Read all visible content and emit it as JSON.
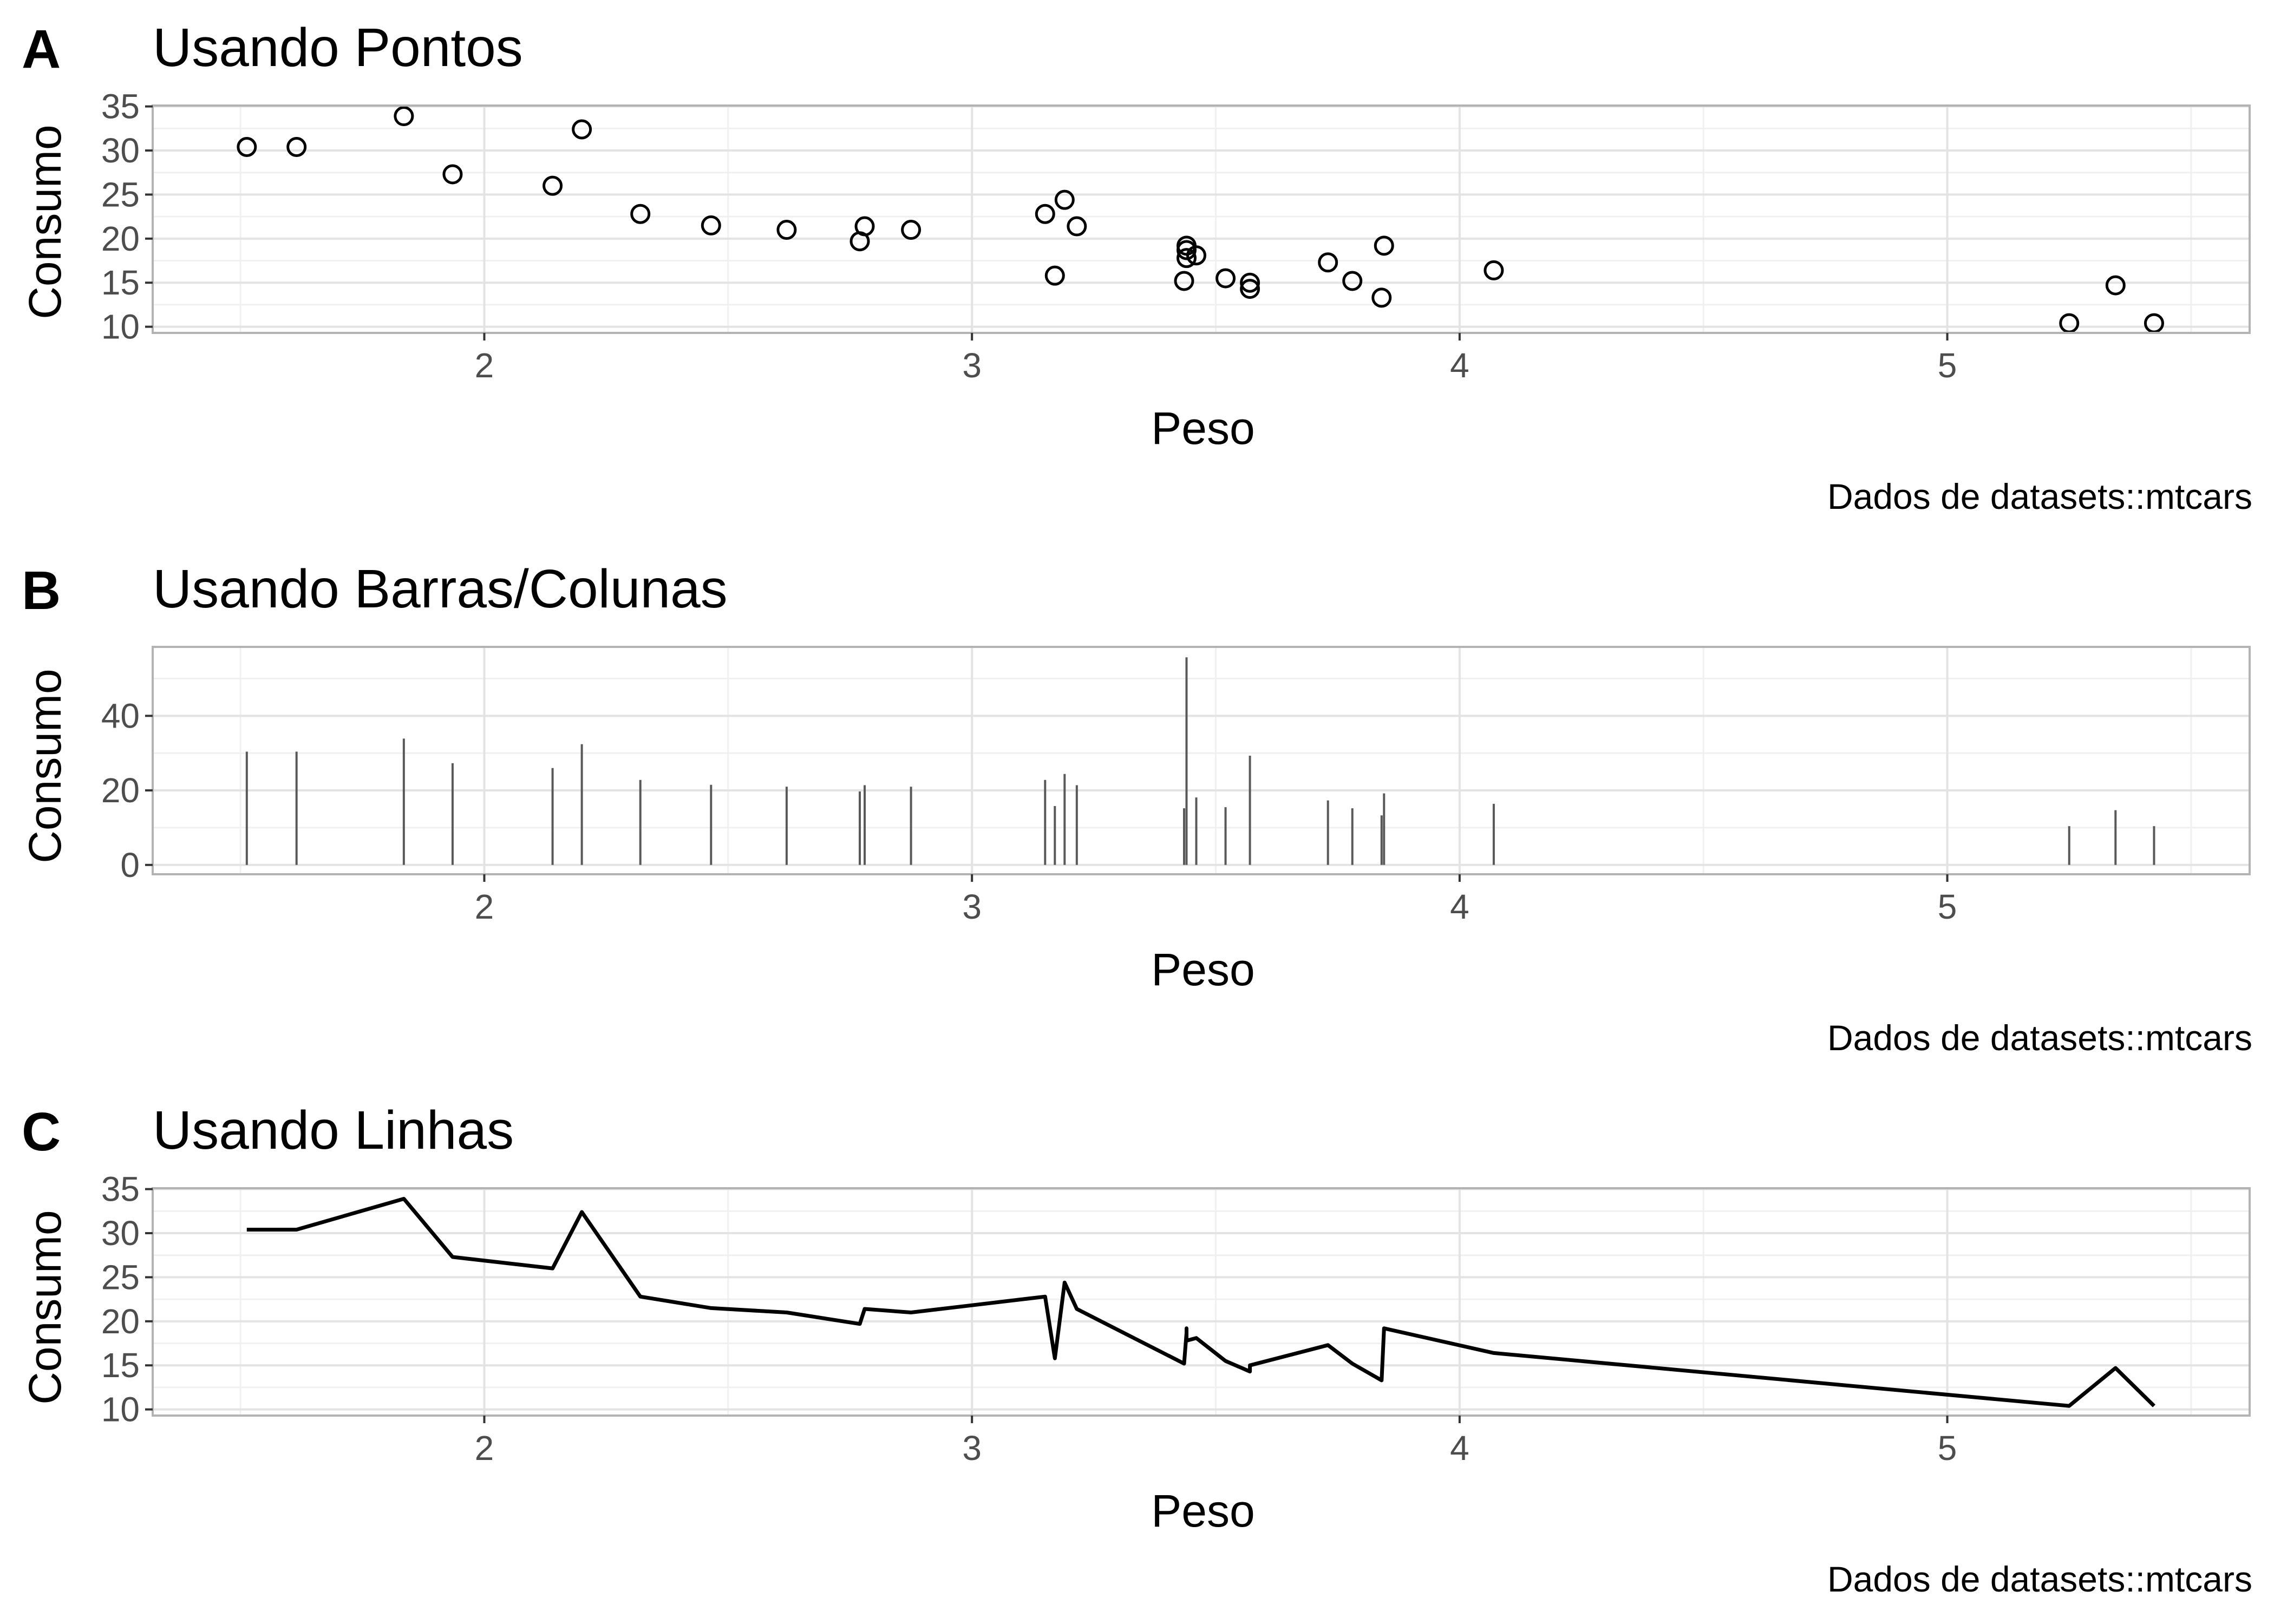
{
  "caption": "Dados de datasets::mtcars",
  "chart_data": [
    {
      "tag": "A",
      "type": "scatter",
      "title": "Usando Pontos",
      "xlabel": "Peso",
      "ylabel": "Consumo",
      "xlim": [
        1.32,
        5.62
      ],
      "ylim": [
        9.3,
        35.1
      ],
      "xticks": [
        2,
        3,
        4,
        5
      ],
      "yticks": [
        10,
        15,
        20,
        25,
        30,
        35
      ],
      "grid": true,
      "x": [
        1.513,
        1.615,
        1.835,
        1.935,
        2.14,
        2.2,
        2.32,
        2.465,
        2.62,
        2.77,
        2.78,
        2.875,
        3.15,
        3.17,
        3.19,
        3.215,
        3.435,
        3.44,
        3.44,
        3.44,
        3.46,
        3.52,
        3.57,
        3.57,
        3.73,
        3.78,
        3.84,
        3.845,
        4.07,
        5.25,
        5.345,
        5.424
      ],
      "y": [
        30.4,
        30.4,
        33.9,
        27.3,
        26.0,
        32.4,
        22.8,
        21.5,
        21.0,
        19.7,
        21.4,
        21.0,
        22.8,
        15.8,
        24.4,
        21.4,
        15.2,
        18.7,
        19.2,
        17.8,
        18.1,
        15.5,
        14.3,
        15.0,
        17.3,
        15.2,
        13.3,
        19.2,
        16.4,
        10.4,
        14.7,
        10.4
      ]
    },
    {
      "tag": "B",
      "type": "bar",
      "title": "Usando Barras/Colunas",
      "xlabel": "Peso",
      "ylabel": "Consumo",
      "xlim": [
        1.32,
        5.62
      ],
      "ylim": [
        -2.5,
        58.5
      ],
      "xticks": [
        2,
        3,
        4,
        5
      ],
      "yticks": [
        0,
        20,
        40
      ],
      "grid": true,
      "x": [
        1.513,
        1.615,
        1.835,
        1.935,
        2.14,
        2.2,
        2.32,
        2.465,
        2.62,
        2.77,
        2.78,
        2.875,
        3.15,
        3.17,
        3.19,
        3.215,
        3.435,
        3.44,
        3.46,
        3.52,
        3.57,
        3.73,
        3.78,
        3.84,
        3.845,
        4.07,
        5.25,
        5.345,
        5.424
      ],
      "values": [
        30.4,
        30.4,
        33.9,
        27.3,
        26.0,
        32.4,
        22.8,
        21.5,
        21.0,
        19.7,
        21.4,
        21.0,
        22.8,
        15.8,
        24.4,
        21.4,
        15.2,
        55.7,
        18.1,
        15.5,
        29.3,
        17.3,
        15.2,
        13.3,
        19.2,
        16.4,
        10.4,
        14.7,
        10.4
      ]
    },
    {
      "tag": "C",
      "type": "line",
      "title": "Usando Linhas",
      "xlabel": "Peso",
      "ylabel": "Consumo",
      "xlim": [
        1.32,
        5.62
      ],
      "ylim": [
        9.3,
        35.1
      ],
      "xticks": [
        2,
        3,
        4,
        5
      ],
      "yticks": [
        10,
        15,
        20,
        25,
        30,
        35
      ],
      "grid": true,
      "x": [
        1.513,
        1.615,
        1.835,
        1.935,
        2.14,
        2.2,
        2.32,
        2.465,
        2.62,
        2.77,
        2.78,
        2.875,
        3.15,
        3.17,
        3.19,
        3.215,
        3.435,
        3.44,
        3.44,
        3.44,
        3.46,
        3.52,
        3.57,
        3.57,
        3.73,
        3.78,
        3.84,
        3.845,
        4.07,
        5.25,
        5.345,
        5.424
      ],
      "y": [
        30.4,
        30.4,
        33.9,
        27.3,
        26.0,
        32.4,
        22.8,
        21.5,
        21.0,
        19.7,
        21.4,
        21.0,
        22.8,
        15.8,
        24.4,
        21.4,
        15.2,
        18.7,
        19.2,
        17.8,
        18.1,
        15.5,
        14.3,
        15.0,
        17.3,
        15.2,
        13.3,
        19.2,
        16.4,
        10.4,
        14.7,
        10.4
      ]
    }
  ]
}
